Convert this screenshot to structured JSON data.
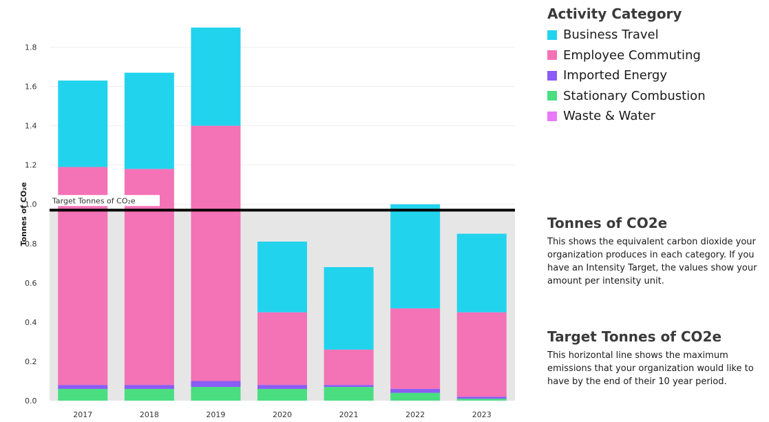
{
  "chart_data": {
    "type": "bar",
    "stacked": true,
    "categories": [
      "2017",
      "2018",
      "2019",
      "2020",
      "2021",
      "2022",
      "2023"
    ],
    "series": [
      {
        "name": "Stationary Combustion",
        "color": "#4ade80",
        "values": [
          0.06,
          0.06,
          0.07,
          0.06,
          0.07,
          0.04,
          0.01
        ]
      },
      {
        "name": "Imported Energy",
        "color": "#8b5cf6",
        "values": [
          0.02,
          0.02,
          0.03,
          0.02,
          0.01,
          0.02,
          0.01
        ]
      },
      {
        "name": "Waste & Water",
        "color": "#e879f9",
        "values": [
          0.0,
          0.0,
          0.0,
          0.0,
          0.0,
          0.0,
          0.0
        ]
      },
      {
        "name": "Employee Commuting",
        "color": "#f472b6",
        "values": [
          1.11,
          1.1,
          1.3,
          0.37,
          0.18,
          0.41,
          0.43
        ]
      },
      {
        "name": "Business Travel",
        "color": "#22d3ee",
        "values": [
          0.44,
          0.49,
          0.5,
          0.36,
          0.42,
          0.53,
          0.4
        ]
      }
    ],
    "ylabel": "Tonnes of CO₂e",
    "ylim": [
      0,
      1.9
    ],
    "yticks": [
      "0.0",
      "0.2",
      "0.4",
      "0.6",
      "0.8",
      "1.0",
      "1.2",
      "1.4",
      "1.6",
      "1.8"
    ],
    "grid": true,
    "target": {
      "value": 0.97,
      "label": "Target Tonnes of CO₂e"
    }
  },
  "legend": {
    "title": "Activity Category",
    "items": [
      {
        "label": "Business Travel",
        "color": "#22d3ee"
      },
      {
        "label": "Employee Commuting",
        "color": "#f472b6"
      },
      {
        "label": "Imported Energy",
        "color": "#8b5cf6"
      },
      {
        "label": "Stationary Combustion",
        "color": "#4ade80"
      },
      {
        "label": "Waste & Water",
        "color": "#e879f9"
      }
    ]
  },
  "info": {
    "tonnes_title": "Tonnes of CO2e",
    "tonnes_text": "This shows the equivalent carbon dioxide your organization produces in each category. If you have an Intensity Target, the values show your amount per intensity unit.",
    "target_title": "Target Tonnes of CO2e",
    "target_text": "This horizontal line shows the maximum emissions that your organization would like to have by the end of their 10 year period."
  }
}
